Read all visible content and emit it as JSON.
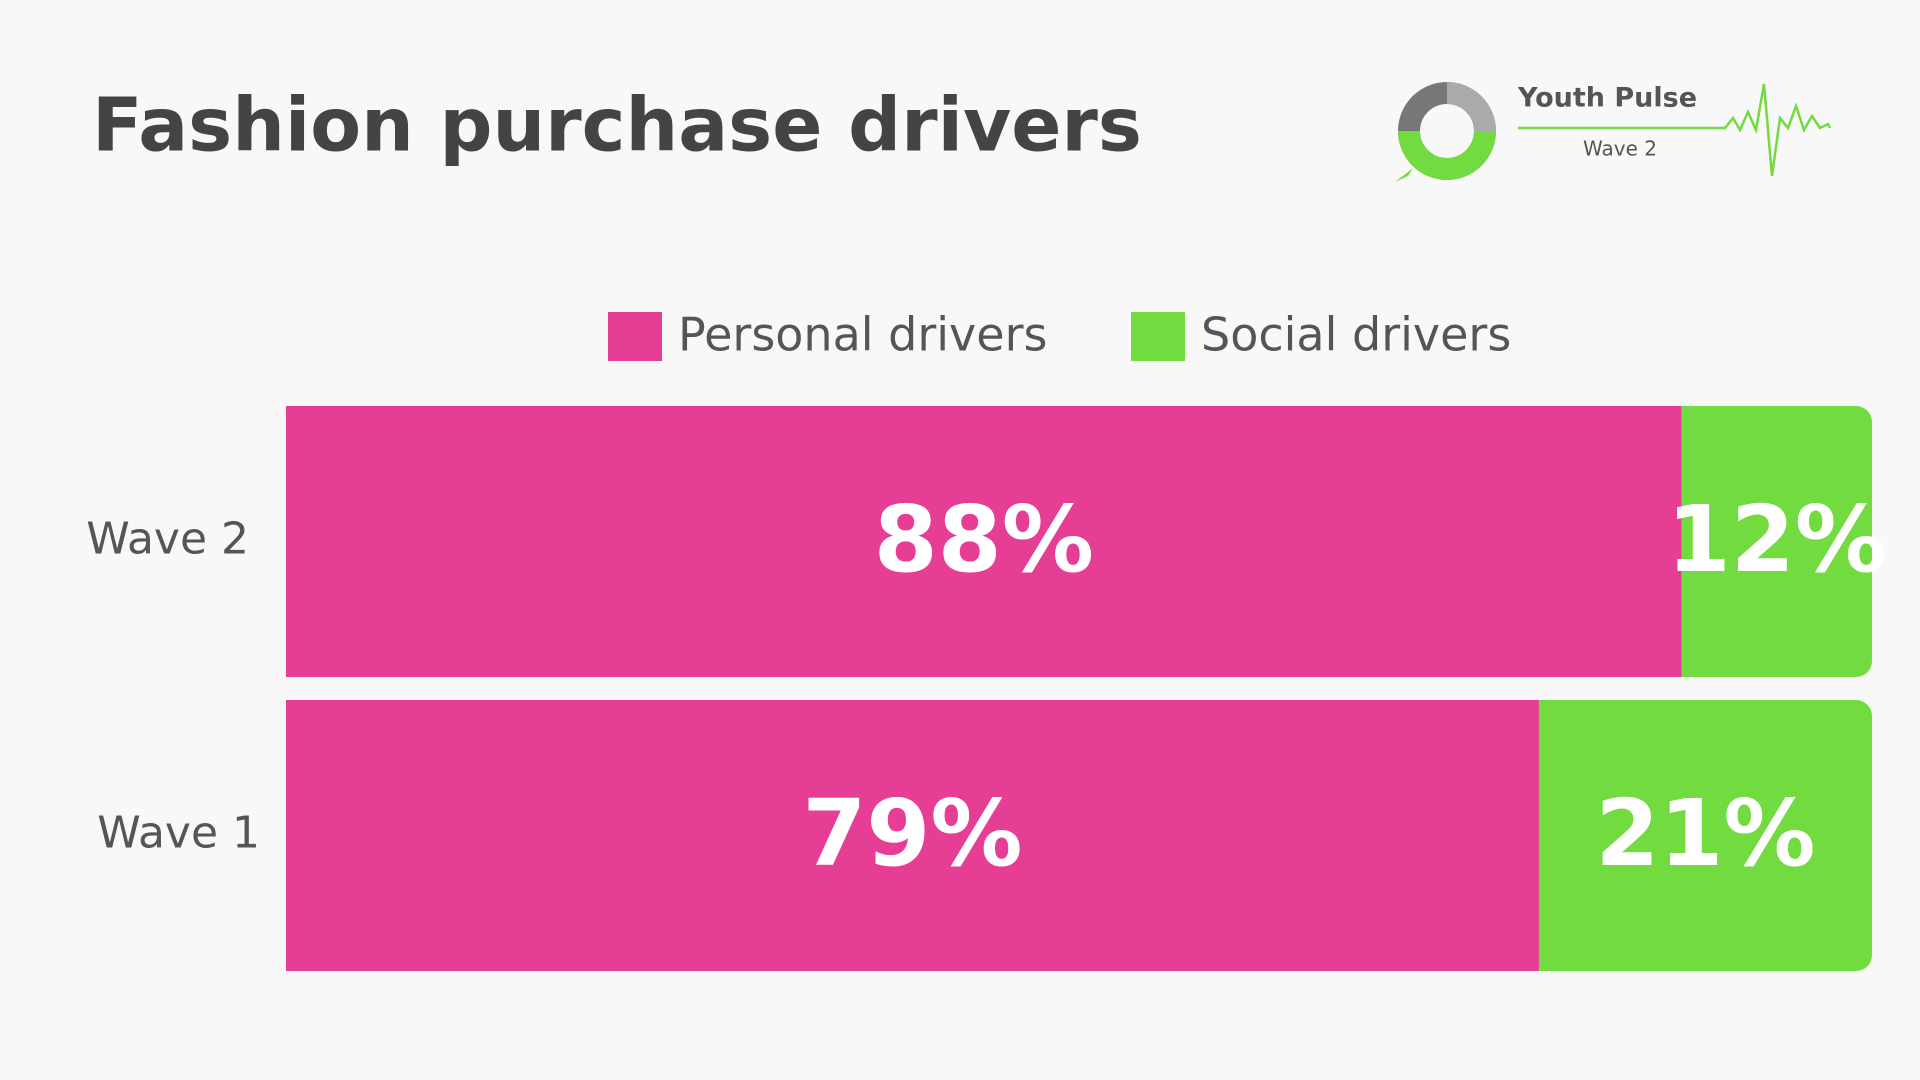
{
  "chart_data": {
    "type": "stacked-bar-horizontal",
    "title": "Fashion purchase drivers",
    "categories": [
      "Wave 2",
      "Wave 1"
    ],
    "series": [
      {
        "name": "Personal drivers",
        "color": "#e63e95",
        "values": [
          88,
          79
        ],
        "value_labels": [
          "88%",
          "79%"
        ]
      },
      {
        "name": "Social drivers",
        "color": "#72db3f",
        "values": [
          12,
          21
        ],
        "value_labels": [
          "12%",
          "21%"
        ]
      }
    ],
    "xlim": [
      0,
      100
    ],
    "legend": "top"
  },
  "logo": {
    "title": "Youth Pulse",
    "subtitle": "Wave 2"
  }
}
